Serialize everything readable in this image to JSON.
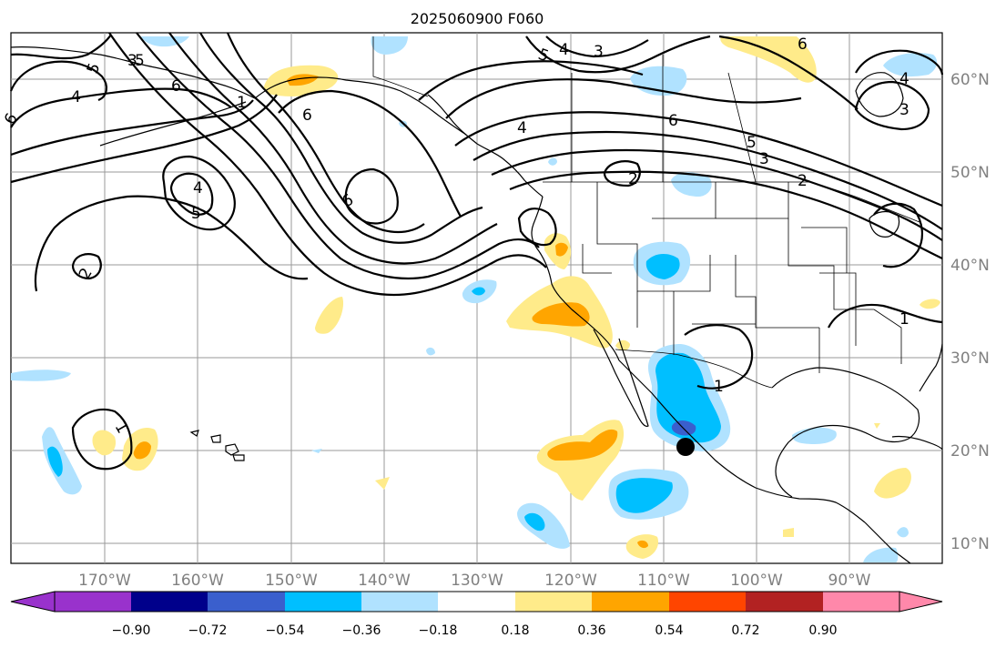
{
  "title": "2025060900 F060",
  "map": {
    "lon_labels": [
      "170°W",
      "160°W",
      "150°W",
      "140°W",
      "130°W",
      "120°W",
      "110°W",
      "100°W",
      "90°W"
    ],
    "lat_labels": [
      "60°N",
      "50°N",
      "40°N",
      "30°N",
      "20°N",
      "10°N"
    ]
  },
  "contour_labels": {
    "a": "5",
    "b": "4",
    "c": "3",
    "d": "6",
    "e": "4",
    "f": "5",
    "g": "2",
    "h": "6",
    "i": "6",
    "j": "5",
    "k": "4",
    "l": "3",
    "m": "6",
    "n": "4",
    "o": "3",
    "p": "6",
    "q": "4",
    "r": "5",
    "s": "3",
    "t": "2",
    "u": "2",
    "v": "1",
    "w": "1",
    "x": "1",
    "y": "1",
    "z": "6",
    "aa": "5"
  },
  "colorbar": {
    "tick_labels": [
      "−0.90",
      "−0.72",
      "−0.54",
      "−0.36",
      "−0.18",
      "0.18",
      "0.36",
      "0.54",
      "0.72",
      "0.90"
    ],
    "colors": [
      "#9932cc",
      "#00008b",
      "#3a5fcd",
      "#00bfff",
      "#b0e2ff",
      "#ffffff",
      "#ffeb8a",
      "#ffa500",
      "#ff4500",
      "#b22222",
      "#ff88aa"
    ]
  },
  "marker": {
    "name": "black dot",
    "color": "#000000"
  }
}
